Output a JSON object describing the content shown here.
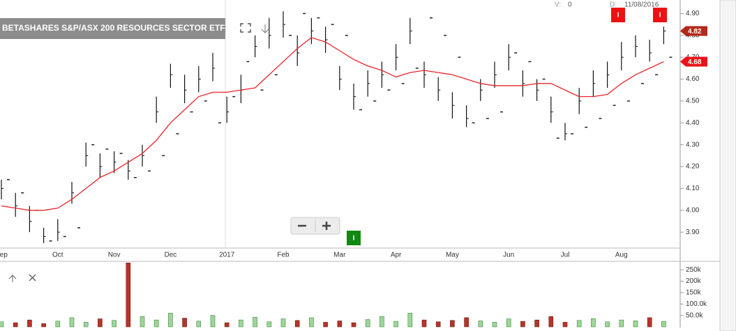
{
  "header": {
    "title": "BETASHARES S&P/ASX 200 RESOURCES SECTOR ETF",
    "v_label": "V:",
    "v_value": "0",
    "d_label": "D:",
    "date": "11/08/2016"
  },
  "events": [
    {
      "label": "I",
      "color": "#ee1111"
    },
    {
      "label": "I",
      "color": "#ee1111"
    },
    {
      "label": "I",
      "color": "#118811"
    }
  ],
  "chart_data": {
    "type": "ohlc",
    "categories": [
      "Sep",
      null,
      null,
      null,
      "Oct",
      null,
      null,
      null,
      "Nov",
      null,
      null,
      null,
      "Dec",
      null,
      null,
      null,
      "2017",
      null,
      null,
      null,
      "Feb",
      null,
      null,
      null,
      "Mar",
      null,
      null,
      null,
      "Apr",
      null,
      null,
      null,
      "May",
      null,
      null,
      null,
      "Jun",
      null,
      null,
      null,
      "Jul",
      null,
      null,
      null,
      "Aug",
      null,
      null,
      null
    ],
    "high": [
      4.14,
      4.08,
      4.02,
      3.92,
      3.96,
      4.13,
      4.31,
      4.26,
      4.27,
      4.23,
      4.3,
      4.52,
      4.67,
      4.62,
      4.66,
      4.72,
      4.52,
      4.62,
      4.8,
      4.88,
      4.91,
      4.8,
      4.88,
      4.84,
      4.66,
      4.58,
      4.64,
      4.68,
      4.76,
      4.88,
      4.68,
      4.61,
      4.54,
      4.48,
      4.6,
      4.68,
      4.76,
      4.64,
      4.6,
      4.52,
      4.4,
      4.56,
      4.64,
      4.68,
      4.77,
      4.8,
      4.78,
      4.84
    ],
    "low": [
      4.05,
      3.97,
      3.9,
      3.85,
      3.86,
      4.03,
      4.2,
      4.15,
      4.17,
      4.14,
      4.2,
      4.4,
      4.56,
      4.49,
      4.54,
      4.59,
      4.4,
      4.49,
      4.7,
      4.74,
      4.79,
      4.66,
      4.76,
      4.72,
      4.55,
      4.46,
      4.52,
      4.56,
      4.64,
      4.76,
      4.56,
      4.5,
      4.42,
      4.38,
      4.5,
      4.56,
      4.64,
      4.52,
      4.5,
      4.4,
      4.32,
      4.44,
      4.52,
      4.56,
      4.64,
      4.7,
      4.68,
      4.76
    ],
    "close": [
      4.1,
      4.02,
      3.95,
      3.88,
      3.9,
      4.08,
      4.25,
      4.2,
      4.22,
      4.18,
      4.25,
      4.45,
      4.62,
      4.55,
      4.6,
      4.65,
      4.45,
      4.55,
      4.75,
      4.8,
      4.85,
      4.72,
      4.82,
      4.78,
      4.6,
      4.52,
      4.58,
      4.62,
      4.7,
      4.82,
      4.62,
      4.55,
      4.48,
      4.42,
      4.55,
      4.62,
      4.7,
      4.58,
      4.55,
      4.45,
      4.35,
      4.5,
      4.58,
      4.62,
      4.7,
      4.75,
      4.72,
      4.82
    ],
    "ma": [
      4.02,
      4.01,
      4.0,
      4.0,
      4.01,
      4.05,
      4.1,
      4.15,
      4.18,
      4.22,
      4.26,
      4.32,
      4.4,
      4.46,
      4.52,
      4.54,
      4.54,
      4.55,
      4.56,
      4.62,
      4.68,
      4.74,
      4.79,
      4.77,
      4.73,
      4.69,
      4.66,
      4.64,
      4.61,
      4.63,
      4.64,
      4.63,
      4.62,
      4.6,
      4.58,
      4.57,
      4.57,
      4.57,
      4.58,
      4.58,
      4.55,
      4.52,
      4.52,
      4.53,
      4.58,
      4.62,
      4.65,
      4.68
    ],
    "sar": [
      4.14,
      4.08,
      4.0,
      3.86,
      3.88,
      3.92,
      4.3,
      4.28,
      4.26,
      4.15,
      4.18,
      4.25,
      4.35,
      4.45,
      4.5,
      4.4,
      4.52,
      4.68,
      4.55,
      4.62,
      4.8,
      4.9,
      4.88,
      4.85,
      4.8,
      4.46,
      4.5,
      4.55,
      4.58,
      4.65,
      4.88,
      4.8,
      4.7,
      4.4,
      4.42,
      4.45,
      4.72,
      4.68,
      4.6,
      4.33,
      4.35,
      4.38,
      4.42,
      4.48,
      4.5,
      4.58,
      4.62,
      4.7
    ],
    "color": "#111111",
    "ma_color": "#e8242a",
    "sar_color": "#222222",
    "ylim": [
      3.84,
      4.93
    ],
    "yticks": [
      {
        "value": 3.9,
        "label": "3.90"
      },
      {
        "value": 4.0,
        "label": "4.00"
      },
      {
        "value": 4.1,
        "label": "4.10"
      },
      {
        "value": 4.2,
        "label": "4.20"
      },
      {
        "value": 4.3,
        "label": "4.30"
      },
      {
        "value": 4.4,
        "label": "4.40"
      },
      {
        "value": 4.5,
        "label": "4.50"
      },
      {
        "value": 4.6,
        "label": "4.60"
      },
      {
        "value": 4.7,
        "label": "4.70"
      },
      {
        "value": 4.8,
        "label": "4.80"
      },
      {
        "value": 4.9,
        "label": "4.90"
      }
    ],
    "last_price": 4.82,
    "last_price_color": "#b22a1a",
    "ma_last": 4.68,
    "ma_last_color": "#e8141a",
    "volume": {
      "values": [
        22,
        18,
        30,
        14,
        25,
        40,
        20,
        35,
        28,
        280,
        45,
        30,
        60,
        38,
        25,
        50,
        18,
        30,
        42,
        22,
        35,
        28,
        40,
        20,
        26,
        18,
        32,
        45,
        24,
        60,
        30,
        22,
        28,
        40,
        26,
        20,
        35,
        24,
        30,
        45,
        20,
        28,
        36,
        22,
        30,
        26,
        40,
        24
      ],
      "up_color": "#9fd49a",
      "down_color": "#b8342a",
      "ylim": [
        0,
        287
      ],
      "yticks": [
        {
          "value": 50,
          "label": "50.0k"
        },
        {
          "value": 100,
          "label": "100.0k"
        },
        {
          "value": 150,
          "label": "150k"
        },
        {
          "value": 200,
          "label": "200k"
        },
        {
          "value": 250,
          "label": "250k"
        }
      ]
    }
  }
}
